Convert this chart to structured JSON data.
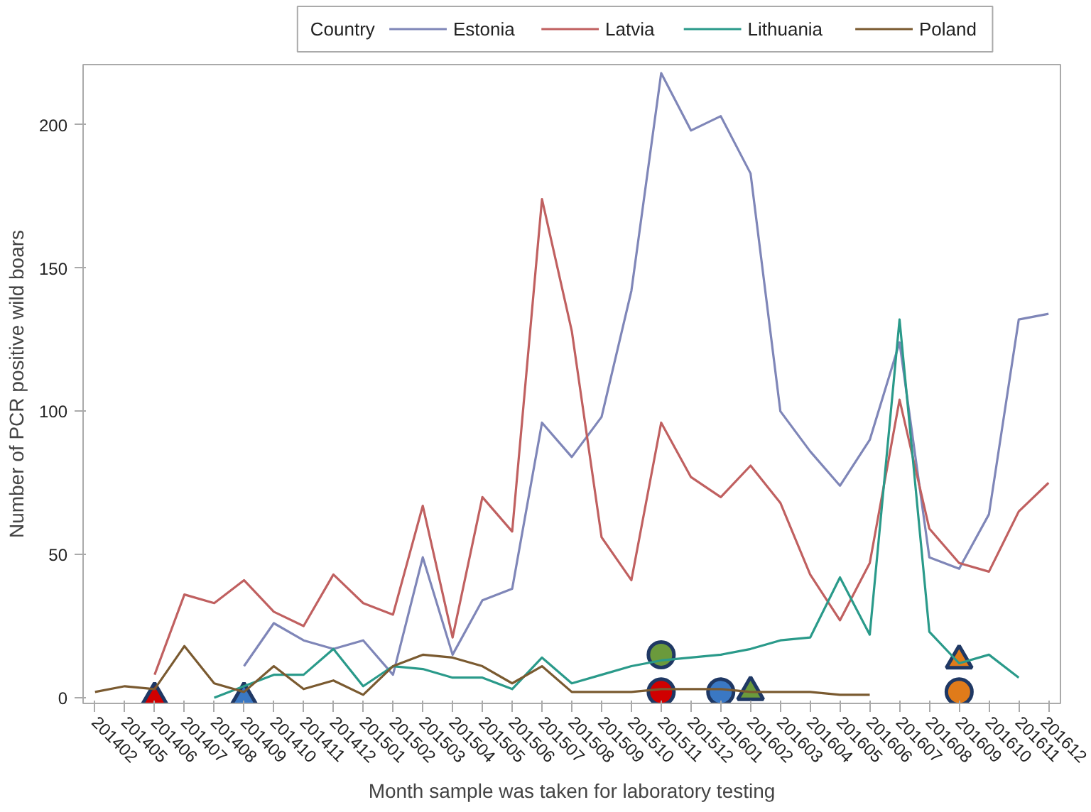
{
  "chart_data": {
    "type": "line",
    "xlabel": "Month sample was taken for laboratory testing",
    "ylabel": "Number of PCR positive wild boars",
    "legend_title": "Country",
    "legend": "top",
    "grid": false,
    "marker": "none",
    "line_style": "solid",
    "ylim": [
      -2,
      221
    ],
    "yticks": [
      0,
      50,
      100,
      150,
      200
    ],
    "categories": [
      "201402",
      "201405",
      "201406",
      "201407",
      "201408",
      "201409",
      "201410",
      "201411",
      "201412",
      "201501",
      "201502",
      "201503",
      "201504",
      "201505",
      "201506",
      "201507",
      "201508",
      "201509",
      "201510",
      "201511",
      "201512",
      "201601",
      "201602",
      "201603",
      "201604",
      "201605",
      "201606",
      "201607",
      "201608",
      "201609",
      "201610",
      "201611",
      "201612"
    ],
    "series": [
      {
        "name": "Estonia",
        "color": "#7f86b8",
        "values": [
          null,
          null,
          null,
          null,
          null,
          11,
          26,
          20,
          17,
          20,
          8,
          49,
          15,
          34,
          38,
          96,
          84,
          98,
          142,
          218,
          198,
          203,
          183,
          100,
          86,
          74,
          90,
          124,
          49,
          45,
          64,
          132,
          134
        ]
      },
      {
        "name": "Latvia",
        "color": "#c06060",
        "values": [
          null,
          null,
          8,
          36,
          33,
          41,
          30,
          25,
          43,
          33,
          29,
          67,
          21,
          70,
          58,
          174,
          128,
          56,
          41,
          96,
          77,
          70,
          81,
          68,
          43,
          27,
          47,
          104,
          59,
          47,
          44,
          65,
          75
        ]
      },
      {
        "name": "Lithuania",
        "color": "#2a9a8a",
        "values": [
          null,
          null,
          null,
          null,
          0,
          4,
          8,
          8,
          17,
          4,
          11,
          10,
          7,
          7,
          3,
          14,
          5,
          8,
          11,
          13,
          14,
          15,
          17,
          20,
          21,
          42,
          22,
          132,
          23,
          12,
          15,
          7,
          null
        ]
      },
      {
        "name": "Poland",
        "color": "#7a5a30",
        "values": [
          2,
          4,
          3,
          18,
          5,
          2,
          11,
          3,
          6,
          1,
          11,
          15,
          14,
          11,
          5,
          11,
          2,
          2,
          2,
          3,
          3,
          3,
          2,
          2,
          2,
          1,
          1,
          null,
          null,
          null,
          null,
          null,
          null
        ]
      },
      {
        "type": "scatter",
        "marker": "triangle",
        "color": "#d00000",
        "x": [
          "201406"
        ],
        "values": [
          0
        ]
      },
      {
        "type": "scatter",
        "marker": "triangle",
        "color": "#3a78c4",
        "x": [
          "201409"
        ],
        "values": [
          0
        ]
      },
      {
        "type": "scatter",
        "marker": "circle",
        "color": "#6b9a3c",
        "x": [
          "201511"
        ],
        "values": [
          15
        ]
      },
      {
        "type": "scatter",
        "marker": "circle",
        "color": "#d00000",
        "x": [
          "201511"
        ],
        "values": [
          2
        ]
      },
      {
        "type": "scatter",
        "marker": "circle",
        "color": "#3a78c4",
        "x": [
          "201601"
        ],
        "values": [
          2
        ]
      },
      {
        "type": "scatter",
        "marker": "triangle",
        "color": "#6b9a3c",
        "x": [
          "201602"
        ],
        "values": [
          2
        ]
      },
      {
        "type": "scatter",
        "marker": "triangle",
        "color": "#e07b1a",
        "x": [
          "201609"
        ],
        "values": [
          13
        ]
      },
      {
        "type": "scatter",
        "marker": "circle",
        "color": "#e07b1a",
        "x": [
          "201609"
        ],
        "values": [
          2
        ]
      }
    ]
  }
}
